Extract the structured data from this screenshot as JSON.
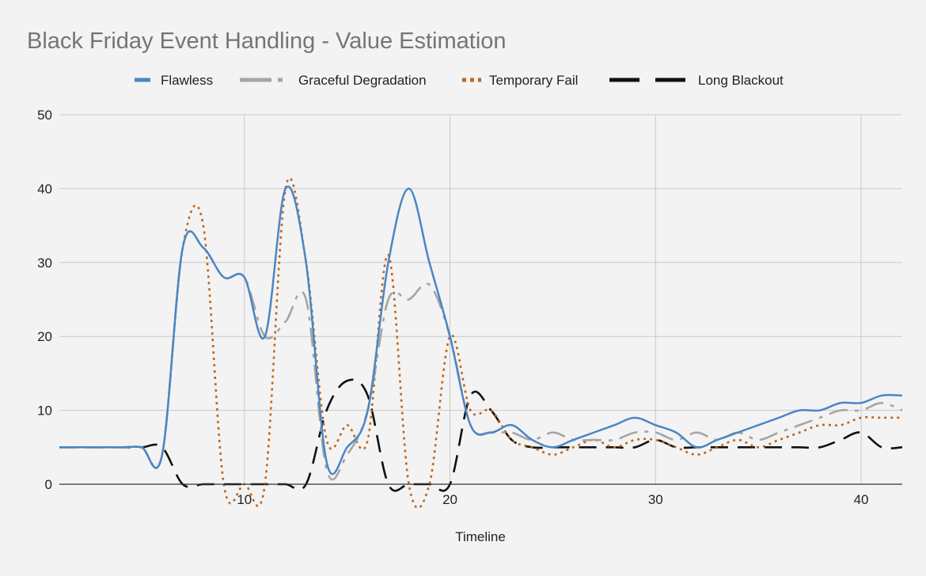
{
  "chart_data": {
    "type": "line",
    "title": "Black Friday Event Handling - Value Estimation",
    "xlabel": "Timeline",
    "ylabel": "",
    "xlim": [
      1,
      42
    ],
    "ylim": [
      0,
      50
    ],
    "xticks": [
      10,
      20,
      30,
      40
    ],
    "yticks": [
      0,
      10,
      20,
      30,
      40,
      50
    ],
    "grid": true,
    "legend_position": "top-center",
    "x": [
      1,
      2,
      3,
      4,
      5,
      6,
      7,
      8,
      9,
      10,
      11,
      12,
      13,
      14,
      15,
      16,
      17,
      18,
      19,
      20,
      21,
      22,
      23,
      24,
      25,
      26,
      27,
      28,
      29,
      30,
      31,
      32,
      33,
      34,
      35,
      36,
      37,
      38,
      39,
      40,
      41,
      42
    ],
    "series": [
      {
        "name": "Flawless",
        "color": "#4a86c5",
        "dash": "solid",
        "values": [
          5,
          5,
          5,
          5,
          5,
          4,
          32,
          32,
          28,
          28,
          20,
          40,
          30,
          3,
          5,
          10,
          30,
          40,
          30,
          20,
          8,
          7,
          8,
          6,
          5,
          6,
          7,
          8,
          9,
          8,
          7,
          5,
          6,
          7,
          8,
          9,
          10,
          10,
          11,
          11,
          12,
          12
        ]
      },
      {
        "name": "Graceful Degradation",
        "color": "#a5a5a5",
        "dash": "dashdot",
        "values": [
          5,
          5,
          5,
          5,
          5,
          4,
          32,
          32,
          28,
          28,
          20,
          22,
          25,
          2,
          4,
          10,
          25,
          25,
          27,
          20,
          8,
          7,
          7,
          6,
          7,
          6,
          6,
          6,
          7,
          7,
          6,
          7,
          6,
          7,
          6,
          7,
          8,
          9,
          10,
          10,
          11,
          10
        ]
      },
      {
        "name": "Temporary Fail",
        "color": "#c0651a",
        "dash": "dot",
        "values": [
          5,
          5,
          5,
          5,
          5,
          4,
          32,
          35,
          0,
          0,
          0,
          40,
          30,
          6,
          8,
          6,
          31,
          0,
          0,
          20,
          10,
          10,
          6,
          5,
          4,
          5,
          6,
          5,
          6,
          6,
          5,
          4,
          5,
          6,
          5,
          6,
          7,
          8,
          8,
          9,
          9,
          9
        ]
      },
      {
        "name": "Long Blackout",
        "color": "#111111",
        "dash": "longdash",
        "values": [
          5,
          5,
          5,
          5,
          5,
          5,
          0,
          0,
          0,
          0,
          0,
          0,
          0,
          10,
          14,
          12,
          0,
          0,
          0,
          0,
          12,
          10,
          6,
          5,
          5,
          5,
          5,
          5,
          5,
          6,
          5,
          5,
          5,
          5,
          5,
          5,
          5,
          5,
          6,
          7,
          5,
          5
        ]
      }
    ]
  }
}
